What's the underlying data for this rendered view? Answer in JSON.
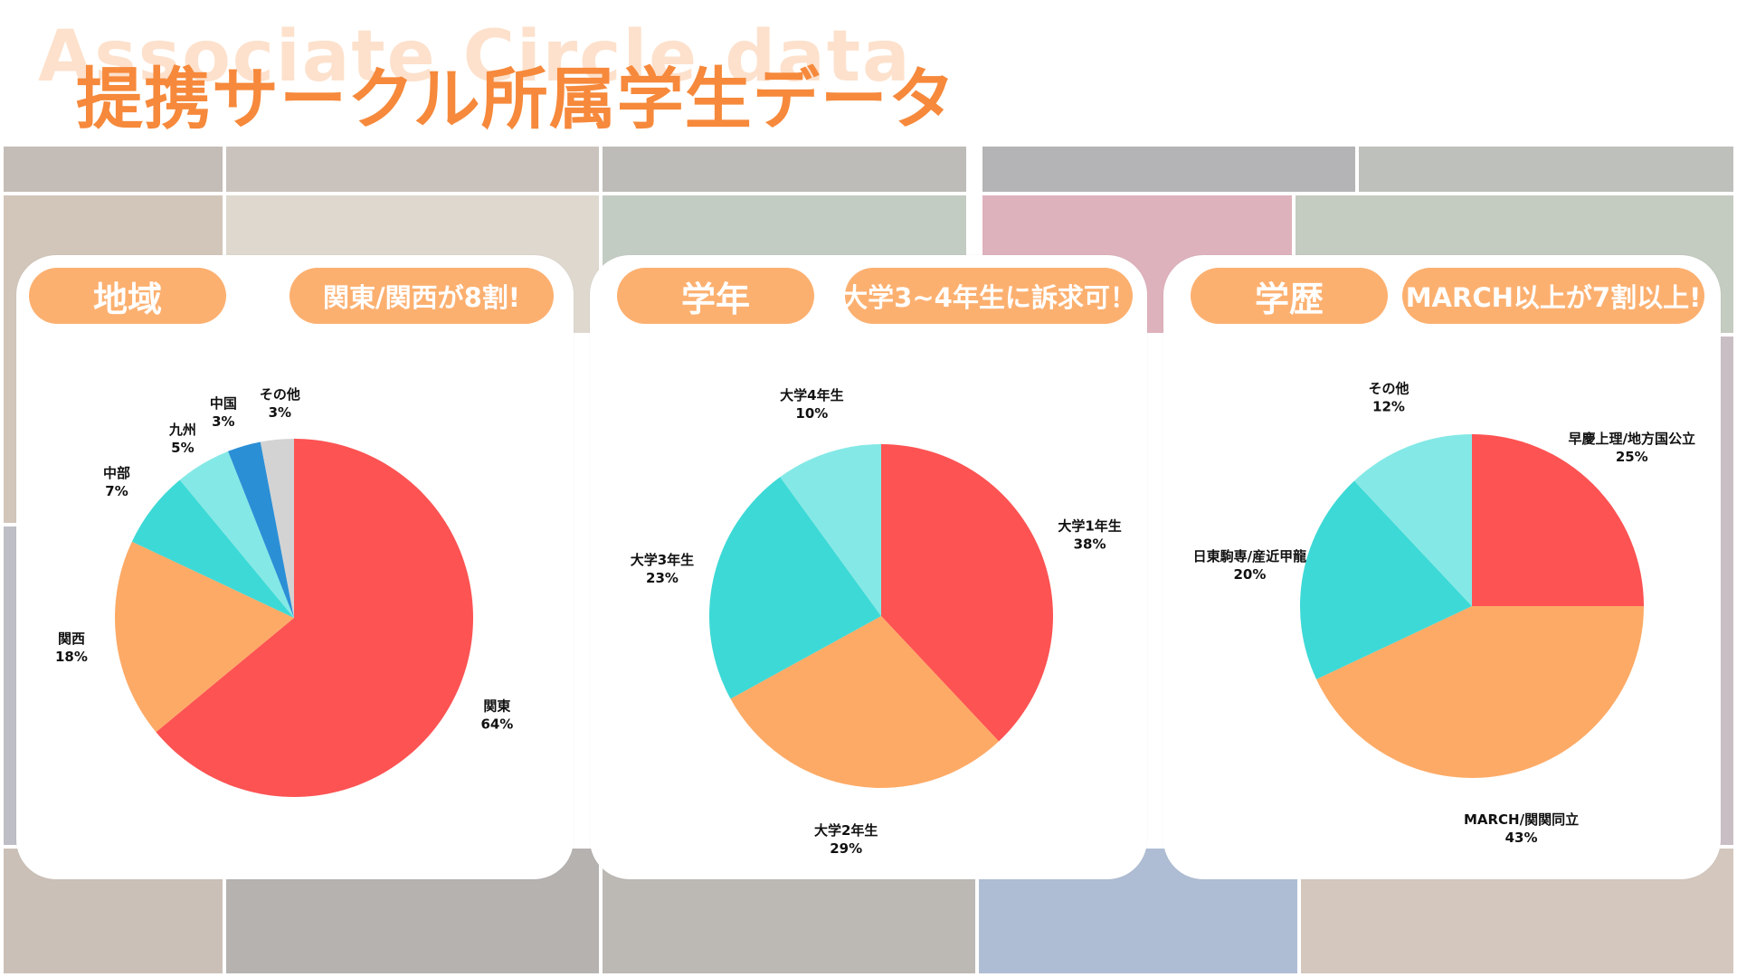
{
  "header": {
    "watermark": "Associate Circle data",
    "title": "提携サークル所属学生データ"
  },
  "colors": {
    "accent": "#f6893b",
    "pill": "#fcb070",
    "red": "#fd5353",
    "orange": "#fdaa66",
    "teal": "#3dd9d6",
    "light_teal": "#84e9e6",
    "blue": "#2b8fd6",
    "gray": "#d3d3d3"
  },
  "panels": [
    {
      "category": "地域",
      "note": "関東/関西が8割!",
      "chart_data": {
        "type": "pie",
        "title": "",
        "start": "top, clockwise",
        "slices": [
          {
            "label": "関東",
            "value": 64,
            "pct": "64%",
            "color": "#fd5353"
          },
          {
            "label": "関西",
            "value": 18,
            "pct": "18%",
            "color": "#fdaa66"
          },
          {
            "label": "中部",
            "value": 7,
            "pct": "7%",
            "color": "#3dd9d6"
          },
          {
            "label": "九州",
            "value": 5,
            "pct": "5%",
            "color": "#84e9e6"
          },
          {
            "label": "中国",
            "value": 3,
            "pct": "3%",
            "color": "#2b8fd6"
          },
          {
            "label": "その他",
            "value": 3,
            "pct": "3%",
            "color": "#d3d3d3"
          }
        ]
      }
    },
    {
      "category": "学年",
      "note": "大学3~4年生に訴求可！",
      "chart_data": {
        "type": "pie",
        "title": "",
        "start": "top, clockwise",
        "slices": [
          {
            "label": "大学1年生",
            "value": 38,
            "pct": "38%",
            "color": "#fd5353"
          },
          {
            "label": "大学2年生",
            "value": 29,
            "pct": "29%",
            "color": "#fdaa66"
          },
          {
            "label": "大学3年生",
            "value": 23,
            "pct": "23%",
            "color": "#3dd9d6"
          },
          {
            "label": "大学4年生",
            "value": 10,
            "pct": "10%",
            "color": "#84e9e6"
          }
        ]
      }
    },
    {
      "category": "学歴",
      "note": "MARCH以上が7割以上!",
      "chart_data": {
        "type": "pie",
        "title": "",
        "start": "top, clockwise",
        "slices": [
          {
            "label": "早慶上理/地方国公立",
            "value": 25,
            "pct": "25%",
            "color": "#fd5353"
          },
          {
            "label": "MARCH/関関同立",
            "value": 43,
            "pct": "43%",
            "color": "#fdaa66"
          },
          {
            "label": "日東駒専/産近甲龍",
            "value": 20,
            "pct": "20%",
            "color": "#3dd9d6"
          },
          {
            "label": "その他",
            "value": 12,
            "pct": "12%",
            "color": "#84e9e6"
          }
        ]
      }
    }
  ]
}
